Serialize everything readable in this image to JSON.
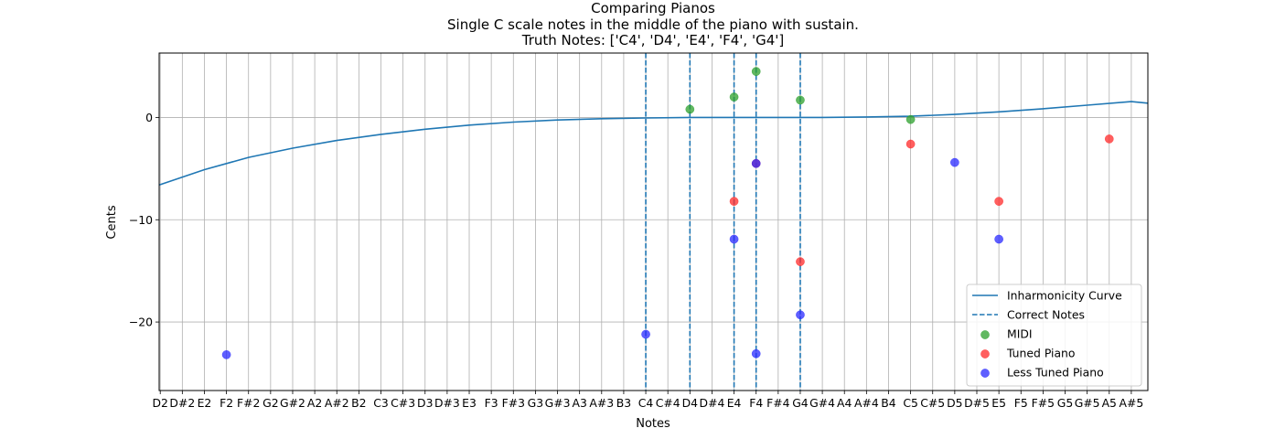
{
  "chart_data": {
    "type": "scatter",
    "title_lines": [
      "Comparing Pianos",
      "Single C scale notes in the middle of the piano with sustain.",
      "Truth Notes: ['C4', 'D4', 'E4', 'F4', 'G4']"
    ],
    "xlabel": "Notes",
    "ylabel": "Cents",
    "x_ticks": [
      "D2",
      "D#2",
      "E2",
      "F2",
      "F#2",
      "G2",
      "G#2",
      "A2",
      "A#2",
      "B2",
      "C3",
      "C#3",
      "D3",
      "D#3",
      "E3",
      "F3",
      "F#3",
      "G3",
      "G#3",
      "A3",
      "A#3",
      "B3",
      "C4",
      "C#4",
      "D4",
      "D#4",
      "E4",
      "F4",
      "F#4",
      "G4",
      "G#4",
      "A4",
      "A#4",
      "B4",
      "C5",
      "C#5",
      "D5",
      "D#5",
      "E5",
      "F5",
      "F#5",
      "G5",
      "G#5",
      "A5",
      "A#5"
    ],
    "xlim": [
      -0.05,
      44.75
    ],
    "ylim": [
      -26.7,
      6.3
    ],
    "y_ticks": [
      0,
      -10,
      -20
    ],
    "grid": true,
    "legend_position": "lower right",
    "colors": {
      "curve": "#1f77b4",
      "correct": "#1f77b4",
      "midi": "#2ca02c",
      "tuned": "#ff2a2a",
      "less_tuned": "#2a2aff",
      "grid": "#b0b0b0"
    },
    "inharmonicity_curve": {
      "name": "Inharmonicity Curve",
      "x": [
        -0.05,
        2,
        4,
        6,
        8,
        10,
        12,
        14,
        16,
        18,
        20,
        22,
        24,
        26,
        28,
        30,
        32,
        34,
        36,
        38,
        40,
        42,
        44,
        44.75
      ],
      "y": [
        -6.6,
        -5.1,
        -3.9,
        -3.0,
        -2.25,
        -1.65,
        -1.15,
        -0.75,
        -0.45,
        -0.25,
        -0.12,
        -0.05,
        0.0,
        0.0,
        0.0,
        0.0,
        0.05,
        0.12,
        0.3,
        0.55,
        0.85,
        1.2,
        1.55,
        1.4
      ]
    },
    "correct_notes": {
      "name": "Correct Notes",
      "x": [
        "C4",
        "D4",
        "E4",
        "F4",
        "G4"
      ]
    },
    "series": [
      {
        "name": "MIDI",
        "color_key": "midi",
        "points": [
          {
            "x": "D4",
            "y": 0.8
          },
          {
            "x": "E4",
            "y": 2.0
          },
          {
            "x": "F4",
            "y": 4.5
          },
          {
            "x": "G4",
            "y": 1.7
          },
          {
            "x": "C5",
            "y": -0.2
          }
        ]
      },
      {
        "name": "Tuned Piano",
        "color_key": "tuned",
        "points": [
          {
            "x": "E4",
            "y": -8.2
          },
          {
            "x": "F4",
            "y": -4.5
          },
          {
            "x": "G4",
            "y": -14.1
          },
          {
            "x": "C5",
            "y": -2.6
          },
          {
            "x": "E5",
            "y": -8.2
          },
          {
            "x": "A5",
            "y": -2.1
          }
        ]
      },
      {
        "name": "Less Tuned Piano",
        "color_key": "less_tuned",
        "points": [
          {
            "x": "F2",
            "y": -23.2
          },
          {
            "x": "C4",
            "y": -21.2
          },
          {
            "x": "E4",
            "y": -11.9
          },
          {
            "x": "F4",
            "y": -4.5
          },
          {
            "x": "F4",
            "y": -23.1
          },
          {
            "x": "G4",
            "y": -19.3
          },
          {
            "x": "D5",
            "y": -4.4
          },
          {
            "x": "E5",
            "y": -11.9
          }
        ]
      }
    ]
  }
}
